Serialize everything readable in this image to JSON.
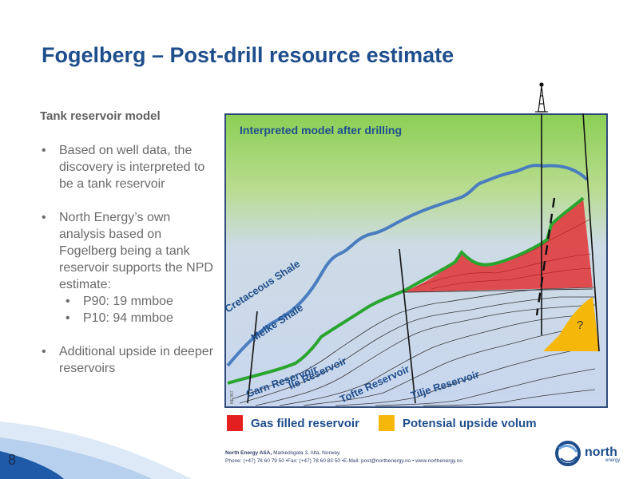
{
  "page": {
    "title": "Fogelberg – Post-drill resource estimate",
    "number": "8"
  },
  "left": {
    "subhead": "Tank reservoir model",
    "bullets": [
      "Based on well data, the discovery is interpreted to be a tank reservoir",
      "North Energy’s own analysis based on Fogelberg being a tank reservoir supports the NPD estimate:",
      "Additional upside in deeper reservoirs"
    ],
    "subbullets": [
      "P90: 19 mmboe",
      "P10: 94 mmboe"
    ]
  },
  "diagram": {
    "heading": "Interpreted model after drilling",
    "labels": {
      "cretaceous_shale": "Cretaceous Shale",
      "melke_shale": "Melke Shale",
      "garn": "Garn Reservoir",
      "ile": "Ile Reservoir",
      "tofte": "Tofte Reservoir",
      "tilje": "Tilje Reservoir",
      "question": "?",
      "watermark": "NE 857"
    },
    "colors": {
      "sky": "#8fcf5a",
      "background_blue": "#c9d7ee",
      "gas": "#e0383a",
      "upside": "#f6b70b",
      "cretaceous_line": "#4a7dbf",
      "melke_line": "#2aa52f"
    },
    "icons": {
      "rig": "drilling-rig-icon"
    }
  },
  "legend": {
    "gas_label": "Gas filled reservoir",
    "upside_label": "Potensial upside volum",
    "gas_color": "#e41f1f",
    "upside_color": "#f6b70b"
  },
  "footer": {
    "company": "North Energy ASA,",
    "address": "Markedsgata 3, Alta, Norway.",
    "contact": "Phone: (+47) 78 60 79 50  •Fax: (+47) 78 60 83 50  •E-Mail: post@northenergy.no  •  www.northenergy.no",
    "logo_text": "north",
    "logo_sub": "energy"
  }
}
